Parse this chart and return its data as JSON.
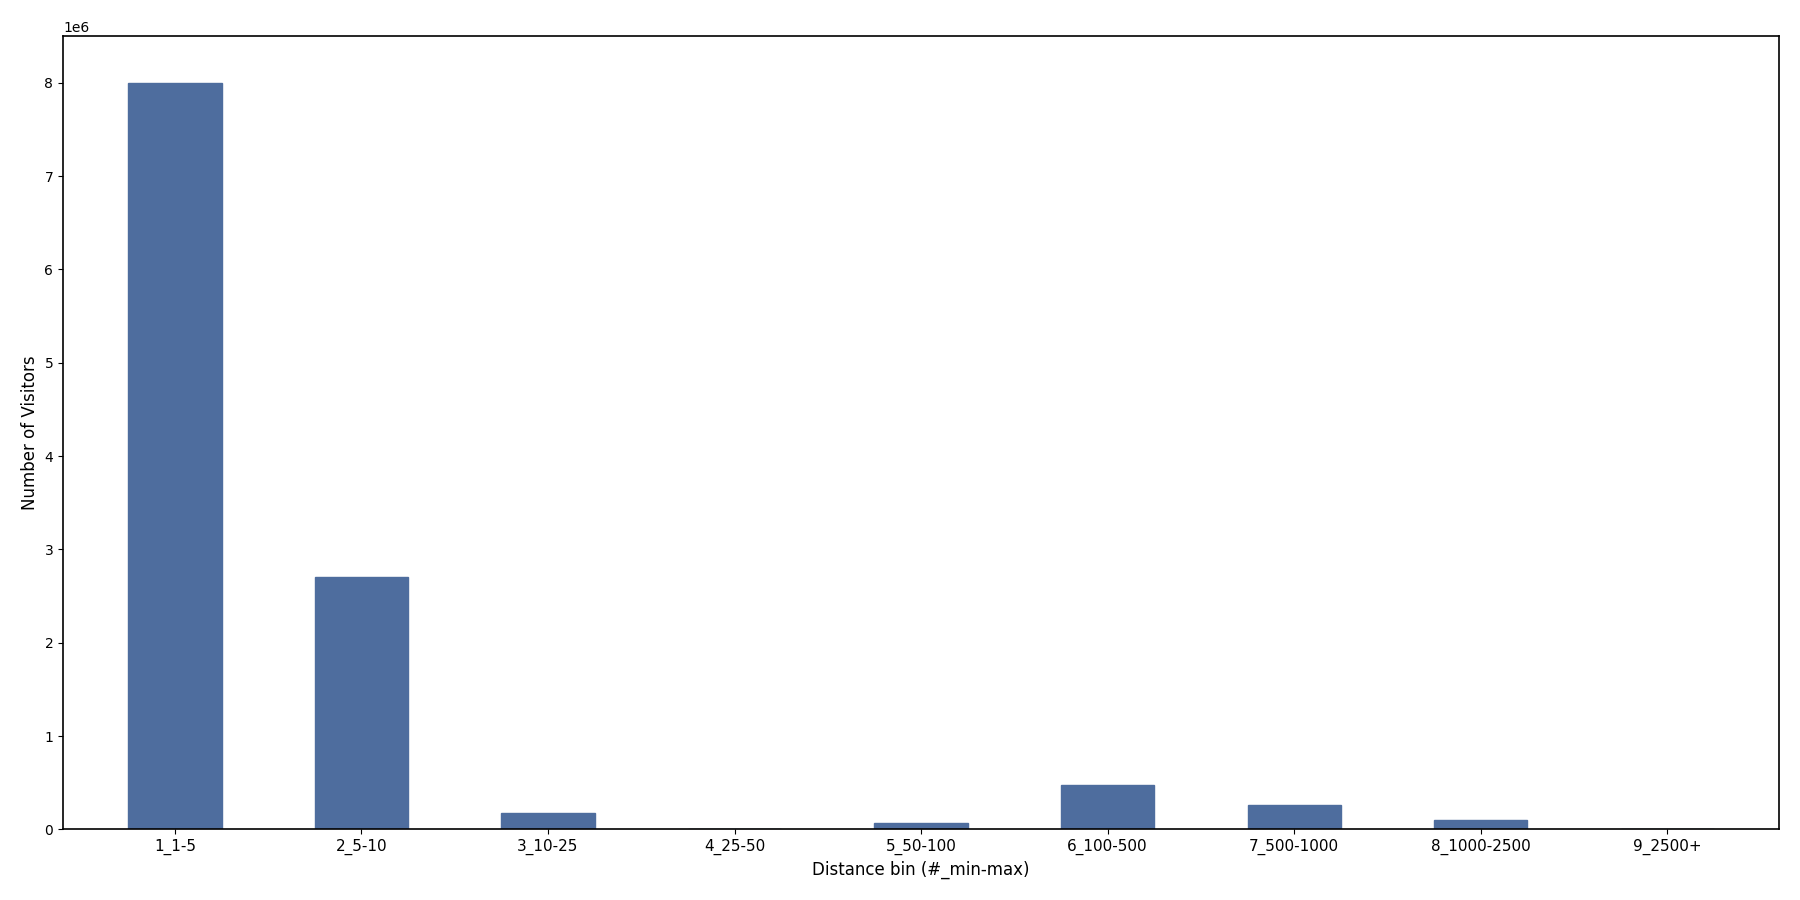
{
  "categories": [
    "1_1-5",
    "2_5-10",
    "3_10-25",
    "4_25-50",
    "5_50-100",
    "6_100-500",
    "7_500-1000",
    "8_1000-2500",
    "9_2500+"
  ],
  "values": [
    8000000,
    2700000,
    180000,
    5000,
    65000,
    480000,
    260000,
    100000,
    5000
  ],
  "bar_color": "#4e6d9e",
  "xlabel": "Distance bin (#_min-max)",
  "ylabel": "Number of Visitors",
  "ylim": [
    0,
    8500000
  ],
  "yticks": [
    0,
    1000000,
    2000000,
    3000000,
    4000000,
    5000000,
    6000000,
    7000000,
    8000000
  ],
  "ytick_labels": [
    "0",
    "1",
    "2",
    "3",
    "4",
    "5",
    "6",
    "7",
    "8"
  ],
  "background_color": "#ffffff",
  "figsize": [
    18.0,
    9.0
  ],
  "dpi": 100,
  "bar_width": 0.5
}
